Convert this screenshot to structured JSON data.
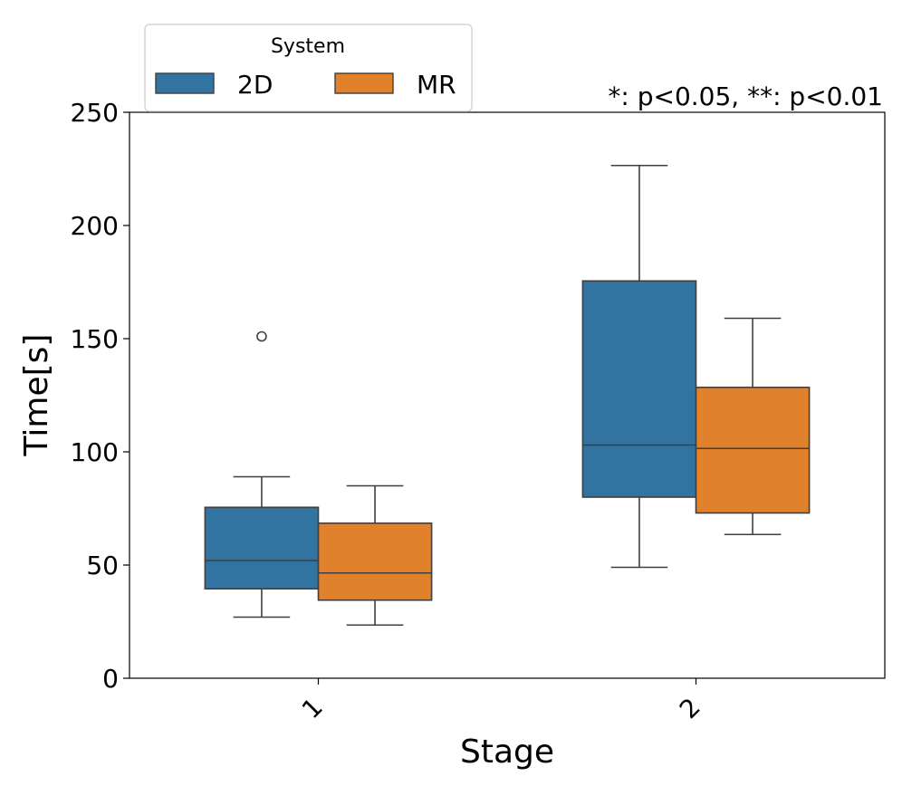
{
  "chart_data": {
    "type": "box",
    "categories": [
      "1",
      "2"
    ],
    "xlabel": "Stage",
    "ylabel": "Time[s]",
    "ylim": [
      0,
      250
    ],
    "yticks": [
      0,
      50,
      100,
      150,
      200,
      250
    ],
    "grid": false,
    "legend": {
      "title": "System",
      "placement": "top-left",
      "entries": [
        "2D",
        "MR"
      ]
    },
    "annotation": "*: p<0.05, **: p<0.01",
    "series": [
      {
        "name": "2D",
        "color": "#3274a1",
        "boxes": [
          {
            "category": "1",
            "whisker_low": 27,
            "q1": 39.5,
            "median": 52,
            "q3": 75.5,
            "whisker_high": 89,
            "outliers": [
              151
            ]
          },
          {
            "category": "2",
            "whisker_low": 49,
            "q1": 80,
            "median": 103,
            "q3": 175.5,
            "whisker_high": 226.5,
            "outliers": []
          }
        ]
      },
      {
        "name": "MR",
        "color": "#e1812c",
        "boxes": [
          {
            "category": "1",
            "whisker_low": 23.5,
            "q1": 34.5,
            "median": 46.5,
            "q3": 68.5,
            "whisker_high": 85,
            "outliers": []
          },
          {
            "category": "2",
            "whisker_low": 63.5,
            "q1": 73,
            "median": 101.5,
            "q3": 128.5,
            "whisker_high": 159,
            "outliers": []
          }
        ]
      }
    ]
  }
}
